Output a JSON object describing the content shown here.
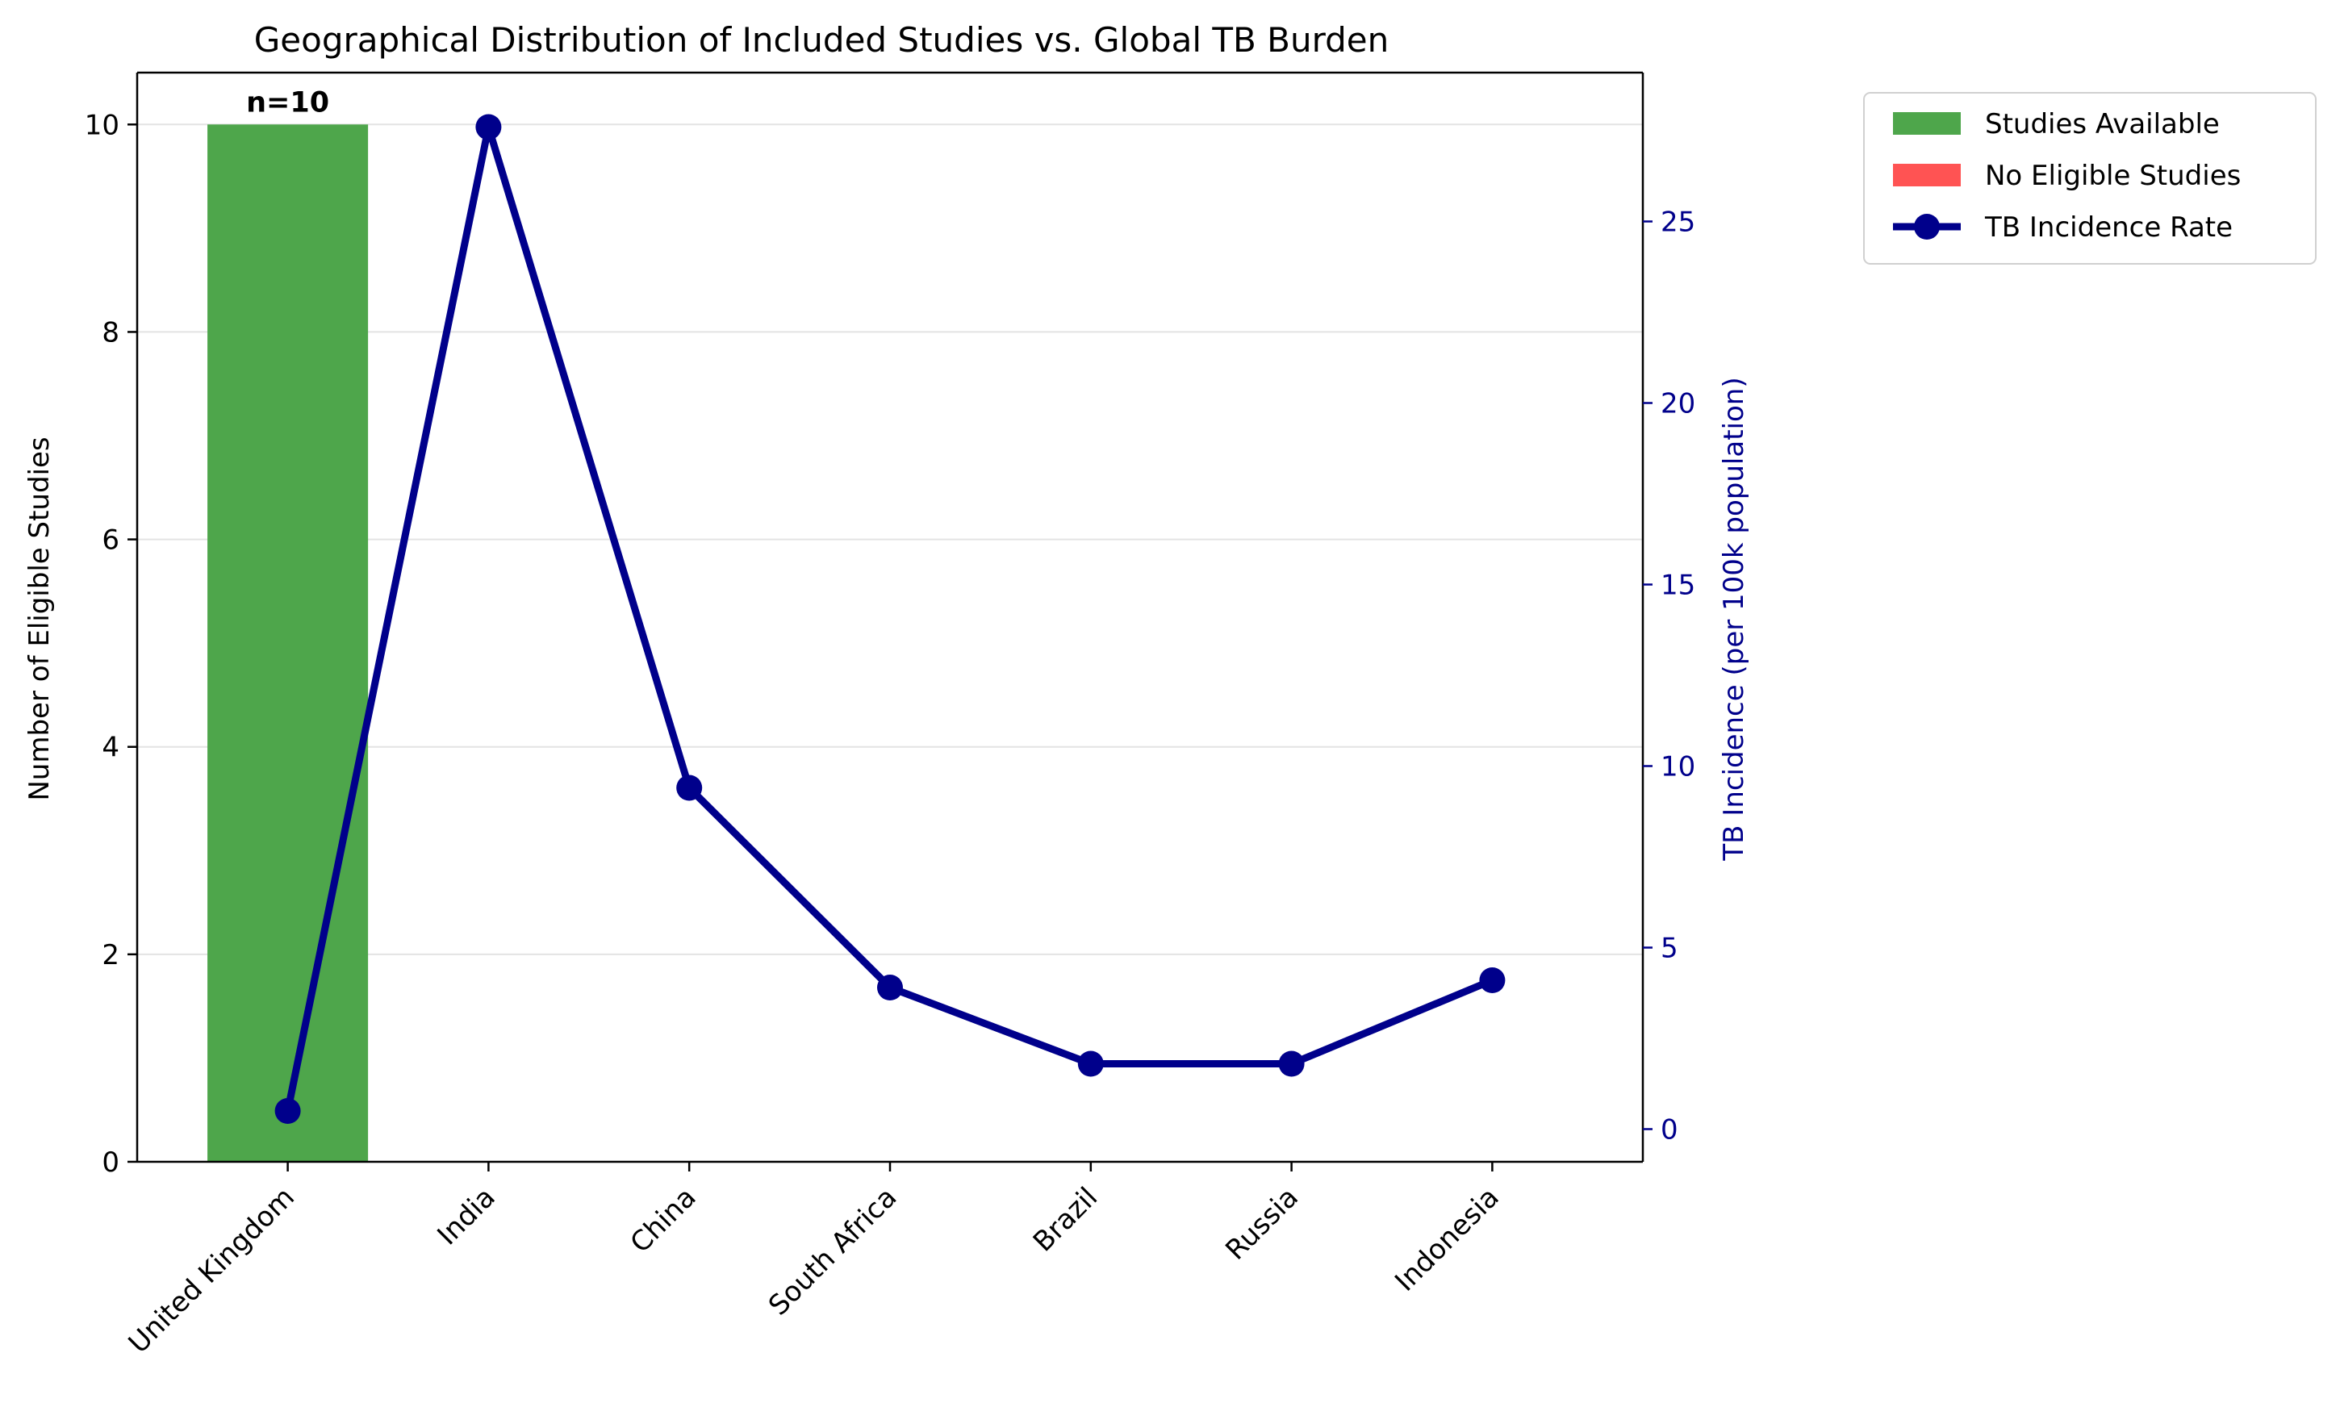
{
  "chart_data": {
    "type": "bar+line",
    "title": "Geographical Distribution of Included Studies vs. Global TB Burden",
    "categories": [
      "United Kingdom",
      "India",
      "China",
      "South Africa",
      "Brazil",
      "Russia",
      "Indonesia"
    ],
    "bars": {
      "name": "Studies Available",
      "values": [
        10,
        0,
        0,
        0,
        0,
        0,
        0
      ],
      "data_labels": [
        "n=10",
        "",
        "",
        "",
        "",
        "",
        ""
      ]
    },
    "line": {
      "name": "TB Incidence Rate",
      "values": [
        0.5,
        27.6,
        9.4,
        3.9,
        1.8,
        1.8,
        4.1
      ]
    },
    "left_axis": {
      "label": "Number of Eligible Studies",
      "ylim": [
        0,
        10.5
      ],
      "ticks": [
        0,
        2,
        4,
        6,
        8,
        10
      ]
    },
    "right_axis": {
      "label": "TB Incidence (per 100k population)",
      "ylim": [
        -0.9,
        29.1
      ],
      "ticks": [
        0,
        5,
        10,
        15,
        20,
        25
      ]
    },
    "legend": {
      "placement": "outside-top-right",
      "entries": [
        {
          "label": "Studies Available",
          "kind": "bar",
          "color": "#4ea64b"
        },
        {
          "label": "No Eligible Studies",
          "kind": "bar",
          "color": "#ff5353"
        },
        {
          "label": "TB Incidence Rate",
          "kind": "line",
          "color": "#00008b"
        }
      ]
    },
    "grid": "horizontal",
    "colors": {
      "bar_available": "#4ea64b",
      "bar_none": "#ff5353",
      "line": "#00008b",
      "right_axis": "#00008b"
    }
  }
}
